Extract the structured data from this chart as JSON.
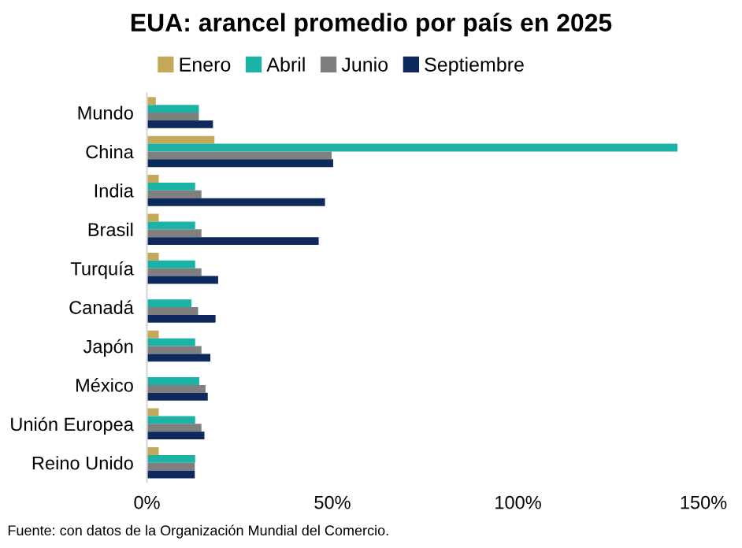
{
  "chart_data": {
    "type": "bar",
    "orientation": "horizontal",
    "title": "EUA: arancel promedio por país en 2025",
    "categories": [
      "Mundo",
      "China",
      "India",
      "Brasil",
      "Turquía",
      "Canadá",
      "Japón",
      "México",
      "Unión Europea",
      "Reino Unido"
    ],
    "series": [
      {
        "name": "Enero",
        "color": "#c5a95a",
        "values": [
          2.4,
          18.2,
          3.2,
          3.2,
          3.2,
          0,
          3.2,
          0,
          3.2,
          3.2
        ]
      },
      {
        "name": "Abril",
        "color": "#1ab3a6",
        "values": [
          14,
          143,
          13,
          13,
          13,
          12,
          13,
          14.1,
          13,
          13
        ]
      },
      {
        "name": "Junio",
        "color": "#7f7f7f",
        "values": [
          14,
          49.8,
          14.7,
          14.7,
          14.7,
          13.8,
          14.7,
          15.8,
          14.7,
          12.9
        ]
      },
      {
        "name": "Septiembre",
        "color": "#0e2a5c",
        "values": [
          17.8,
          50.2,
          48,
          46.3,
          19.2,
          18.5,
          17.1,
          16.4,
          15.5,
          12.9
        ]
      }
    ],
    "xlim": [
      0,
      150
    ],
    "xticks": [
      {
        "value": 0,
        "label": "0%"
      },
      {
        "value": 50,
        "label": "50%"
      },
      {
        "value": 100,
        "label": "100%"
      },
      {
        "value": 150,
        "label": "150%"
      }
    ],
    "grid": false,
    "legend": "top",
    "annotations": [
      "Fuente: con datos de la Organización Mundial del Comercio."
    ]
  }
}
